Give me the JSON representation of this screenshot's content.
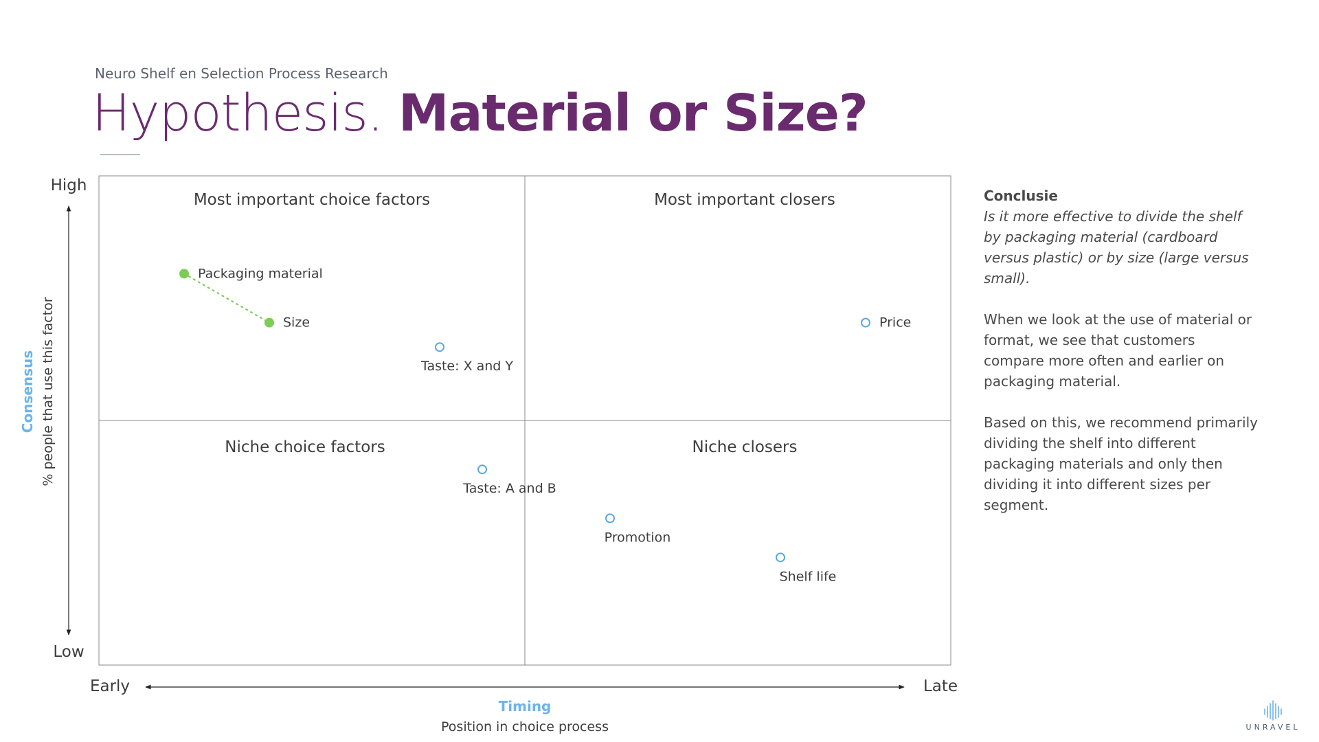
{
  "header": {
    "subtitle": "Neuro Shelf en Selection Process Research",
    "title_light": "Hypothesis.",
    "title_bold": "Material or Size?"
  },
  "chart_data": {
    "type": "scatter",
    "xlim": [
      0,
      100
    ],
    "ylim": [
      0,
      100
    ],
    "x_axis": {
      "low": "Early",
      "high": "Late",
      "name": "Timing",
      "sub": "Position in choice process"
    },
    "y_axis": {
      "low": "Low",
      "high": "High",
      "name": "Consensus",
      "sub": "% people that use this factor"
    },
    "quadrants": {
      "top_left": "Most important choice factors",
      "top_right": "Most important closers",
      "bottom_left": "Niche choice factors",
      "bottom_right": "Niche closers"
    },
    "colors": {
      "highlight": "#7ccc56",
      "default": "#5aa8e0",
      "grid": "#8a8a8a"
    },
    "points": [
      {
        "label": "Packaging material",
        "x": 10,
        "y": 80,
        "highlight": true,
        "label_pos": "right"
      },
      {
        "label": "Size",
        "x": 20,
        "y": 70,
        "highlight": true,
        "label_pos": "right"
      },
      {
        "label": "Taste: X and Y",
        "x": 40,
        "y": 65,
        "highlight": false,
        "label_pos": "below"
      },
      {
        "label": "Price",
        "x": 90,
        "y": 70,
        "highlight": false,
        "label_pos": "right"
      },
      {
        "label": "Taste: A and B",
        "x": 45,
        "y": 40,
        "highlight": false,
        "label_pos": "below"
      },
      {
        "label": "Promotion",
        "x": 60,
        "y": 30,
        "highlight": false,
        "label_pos": "below"
      },
      {
        "label": "Shelf life",
        "x": 80,
        "y": 22,
        "highlight": false,
        "label_pos": "below"
      }
    ],
    "connector": [
      "Packaging material",
      "Size"
    ]
  },
  "side": {
    "heading": "Conclusie",
    "question": "Is it more effective to divide the shelf by packaging material (cardboard versus plastic) or by size (large versus small).",
    "p1": "When we look at the use of material or format, we see that customers compare more often and earlier on packaging material.",
    "p2": "Based on this, we recommend primarily dividing the shelf into different packaging materials and only then dividing it into different sizes per segment."
  },
  "logo": {
    "text": "UNRAVEL",
    "icon": "waveform-icon"
  }
}
